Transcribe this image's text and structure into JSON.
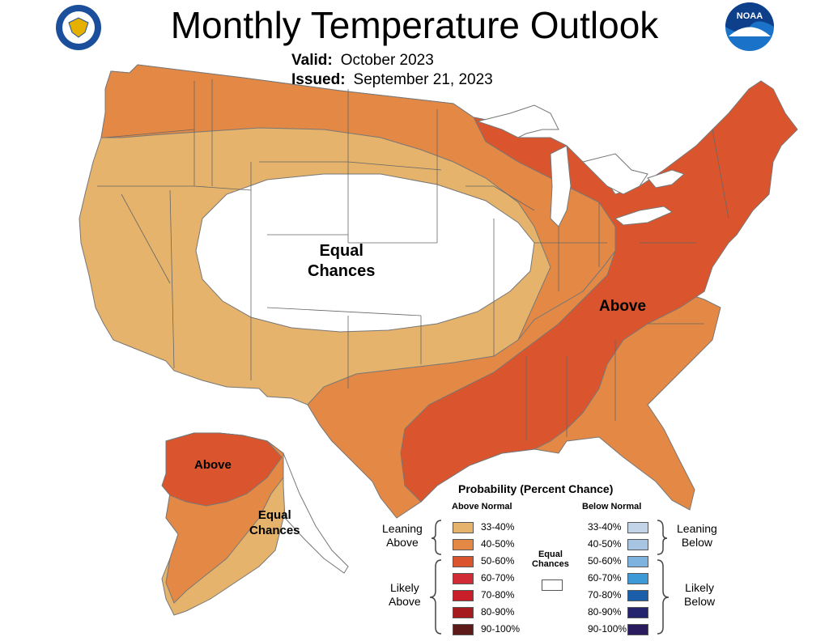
{
  "title": "Monthly Temperature Outlook",
  "valid_label": "Valid:",
  "valid_value": "October 2023",
  "issued_label": "Issued:",
  "issued_value": "September 21, 2023",
  "logos": {
    "left": "doc-seal-icon",
    "right": "noaa-logo-icon",
    "noaa_text": "NOAA"
  },
  "map_labels": {
    "conus_equal": "Equal\nChances",
    "conus_above": "Above",
    "ak_above": "Above",
    "ak_equal": "Equal\nChances"
  },
  "legend": {
    "title": "Probability (Percent Chance)",
    "above_header": "Above Normal",
    "below_header": "Below Normal",
    "leaning_above": "Leaning\nAbove",
    "likely_above": "Likely\nAbove",
    "leaning_below": "Leaning\nBelow",
    "likely_below": "Likely\nBelow",
    "equal": "Equal\nChances",
    "above": [
      {
        "range": "33-40%",
        "color": "#e5b36b"
      },
      {
        "range": "40-50%",
        "color": "#e38945"
      },
      {
        "range": "50-60%",
        "color": "#da552d"
      },
      {
        "range": "60-70%",
        "color": "#d12c36"
      },
      {
        "range": "70-80%",
        "color": "#c81f2b"
      },
      {
        "range": "80-90%",
        "color": "#a51b1e"
      },
      {
        "range": "90-100%",
        "color": "#5e1a18"
      }
    ],
    "below": [
      {
        "range": "33-40%",
        "color": "#c4d4e8"
      },
      {
        "range": "40-50%",
        "color": "#a8c4e3"
      },
      {
        "range": "50-60%",
        "color": "#7eb2df"
      },
      {
        "range": "60-70%",
        "color": "#3d9ad6"
      },
      {
        "range": "70-80%",
        "color": "#1a5da8"
      },
      {
        "range": "80-90%",
        "color": "#24246e"
      },
      {
        "range": "90-100%",
        "color": "#2a1a5e"
      }
    ],
    "equal_color": "#ffffff"
  }
}
